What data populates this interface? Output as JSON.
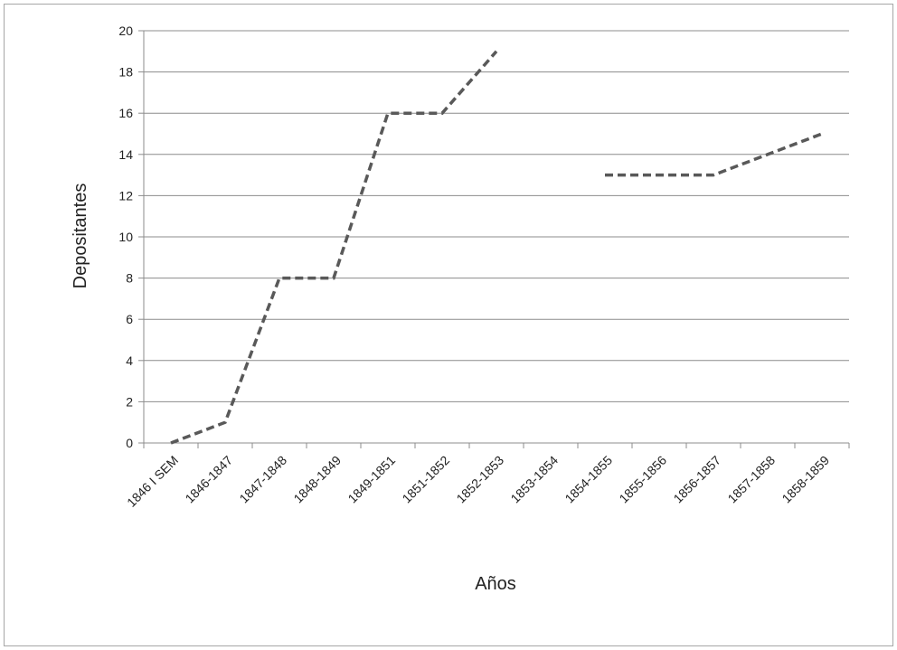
{
  "chart_data": {
    "type": "line",
    "title": "",
    "xlabel": "Años",
    "ylabel": "Depositantes",
    "categories": [
      "1846 I SEM",
      "1846-1847",
      "1847-1848",
      "1848-1849",
      "1849-1851",
      "1851-1852",
      "1852-1853",
      "1853-1854",
      "1854-1855",
      "1855-1856",
      "1856-1857",
      "1857-1858",
      "1858-1859"
    ],
    "series": [
      {
        "values": [
          0,
          1,
          8,
          8,
          16,
          16,
          19,
          null,
          13,
          13,
          13,
          14,
          15
        ]
      }
    ],
    "ylim": [
      0,
      20
    ],
    "yticks": [
      0,
      2,
      4,
      6,
      8,
      10,
      12,
      14,
      16,
      18,
      20
    ],
    "grid": true,
    "legend": "none",
    "colors": {
      "line": "#595959",
      "grid": "#8c8c8c",
      "axis": "#8c8c8c",
      "border": "#a6a6a6"
    },
    "line_style": "dashed"
  }
}
